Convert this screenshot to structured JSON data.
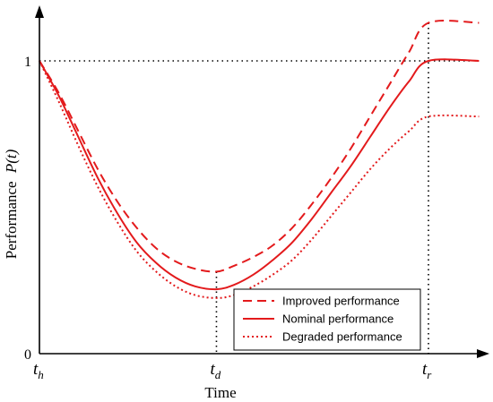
{
  "chart_data": {
    "type": "line",
    "xlabel": "Time",
    "ylabel": "Performance",
    "ylabel_symbol": "P(t)",
    "y_ticks": [
      {
        "value": 0,
        "label": "0"
      },
      {
        "value": 1,
        "label": "1"
      }
    ],
    "x_ticks": [
      {
        "value": 0,
        "base": "t",
        "sub": "h"
      },
      {
        "value": 0.455,
        "base": "t",
        "sub": "d"
      },
      {
        "value": 1,
        "base": "t",
        "sub": "r"
      }
    ],
    "xlim": [
      0,
      1.13
    ],
    "ylim": [
      0,
      1.2
    ],
    "legend_position": "bottom-right",
    "reference_line_y": 1,
    "colors": {
      "series": "#e31a1c",
      "axes": "#000000",
      "reference": "#000000"
    },
    "series": [
      {
        "name": "Improved performance",
        "style": "dashed",
        "points": [
          [
            0,
            1
          ],
          [
            0.05,
            0.89
          ],
          [
            0.1,
            0.76
          ],
          [
            0.15,
            0.63
          ],
          [
            0.2,
            0.52
          ],
          [
            0.25,
            0.43
          ],
          [
            0.3,
            0.36
          ],
          [
            0.35,
            0.315
          ],
          [
            0.4,
            0.29
          ],
          [
            0.455,
            0.28
          ],
          [
            0.5,
            0.3
          ],
          [
            0.55,
            0.33
          ],
          [
            0.6,
            0.37
          ],
          [
            0.65,
            0.43
          ],
          [
            0.7,
            0.51
          ],
          [
            0.75,
            0.6
          ],
          [
            0.8,
            0.7
          ],
          [
            0.85,
            0.81
          ],
          [
            0.9,
            0.92
          ],
          [
            0.95,
            1.03
          ],
          [
            1,
            1.13
          ],
          [
            1.13,
            1.13
          ]
        ]
      },
      {
        "name": "Nominal performance",
        "style": "solid",
        "points": [
          [
            0,
            1
          ],
          [
            0.05,
            0.88
          ],
          [
            0.1,
            0.74
          ],
          [
            0.15,
            0.6
          ],
          [
            0.2,
            0.48
          ],
          [
            0.25,
            0.38
          ],
          [
            0.3,
            0.31
          ],
          [
            0.35,
            0.26
          ],
          [
            0.4,
            0.23
          ],
          [
            0.455,
            0.22
          ],
          [
            0.5,
            0.235
          ],
          [
            0.55,
            0.27
          ],
          [
            0.6,
            0.32
          ],
          [
            0.65,
            0.38
          ],
          [
            0.7,
            0.46
          ],
          [
            0.75,
            0.55
          ],
          [
            0.8,
            0.64
          ],
          [
            0.85,
            0.74
          ],
          [
            0.9,
            0.84
          ],
          [
            0.95,
            0.93
          ],
          [
            1,
            1
          ],
          [
            1.13,
            1
          ]
        ]
      },
      {
        "name": "Degraded performance",
        "style": "dotted",
        "points": [
          [
            0,
            1
          ],
          [
            0.05,
            0.86
          ],
          [
            0.1,
            0.71
          ],
          [
            0.15,
            0.57
          ],
          [
            0.2,
            0.45
          ],
          [
            0.25,
            0.35
          ],
          [
            0.3,
            0.28
          ],
          [
            0.35,
            0.23
          ],
          [
            0.4,
            0.2
          ],
          [
            0.455,
            0.19
          ],
          [
            0.5,
            0.2
          ],
          [
            0.55,
            0.23
          ],
          [
            0.6,
            0.27
          ],
          [
            0.65,
            0.32
          ],
          [
            0.7,
            0.39
          ],
          [
            0.75,
            0.47
          ],
          [
            0.8,
            0.55
          ],
          [
            0.85,
            0.63
          ],
          [
            0.9,
            0.7
          ],
          [
            0.95,
            0.76
          ],
          [
            1,
            0.81
          ],
          [
            1.13,
            0.81
          ]
        ]
      }
    ]
  }
}
